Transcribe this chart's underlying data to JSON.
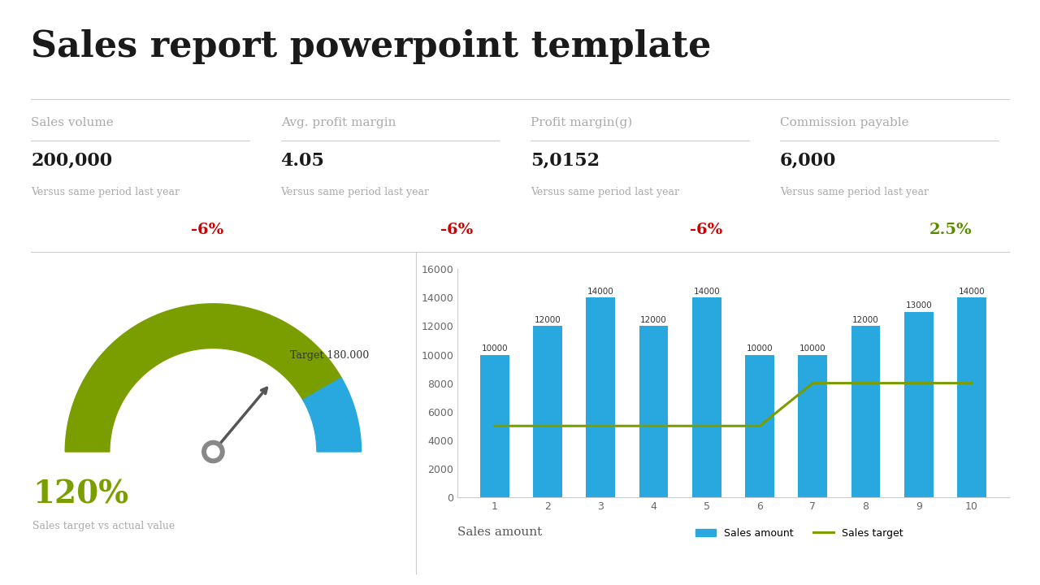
{
  "title": "Sales report powerpoint template",
  "title_fontsize": 32,
  "title_color": "#1a1a1a",
  "background_color": "#ffffff",
  "metrics": [
    {
      "label": "Sales volume",
      "value": "200,000",
      "subtext": "Versus same period last year",
      "change": "-6%",
      "change_color": "#cc0000"
    },
    {
      "label": "Avg. profit margin",
      "value": "4.05",
      "subtext": "Versus same period last year",
      "change": "-6%",
      "change_color": "#cc0000"
    },
    {
      "label": "Profit margin(g)",
      "value": "5,0152",
      "subtext": "Versus same period last year",
      "change": "-6%",
      "change_color": "#cc0000"
    },
    {
      "label": "Commission payable",
      "value": "6,000",
      "subtext": "Versus same period last year",
      "change": "2.5%",
      "change_color": "#5a8a00"
    }
  ],
  "metric_label_color": "#aaaaaa",
  "metric_value_color": "#1a1a1a",
  "metric_subtext_color": "#aaaaaa",
  "gauge_label": "120%",
  "gauge_label_color": "#7a9e00",
  "gauge_subtext": "Sales target vs actual value",
  "gauge_subtext_color": "#aaaaaa",
  "gauge_target_text": "Target 180.000",
  "gauge_green_color": "#7a9e00",
  "gauge_blue_color": "#29a8e0",
  "gauge_needle_color": "#555555",
  "divider_color": "#cccccc",
  "bar_values": [
    10000,
    12000,
    14000,
    12000,
    14000,
    10000,
    10000,
    12000,
    13000,
    14000
  ],
  "line_values": [
    5000,
    5000,
    5000,
    5000,
    5000,
    5000,
    8000,
    8000,
    8000,
    8000
  ],
  "bar_color": "#29a8e0",
  "line_color": "#7a9e00",
  "bar_label": "Sales amount",
  "line_label": "Sales target",
  "xlabel": "Sales amount",
  "ylim": [
    0,
    16000
  ],
  "yticks": [
    0,
    2000,
    4000,
    6000,
    8000,
    10000,
    12000,
    14000,
    16000
  ],
  "xticks": [
    1,
    2,
    3,
    4,
    5,
    6,
    7,
    8,
    9,
    10
  ]
}
